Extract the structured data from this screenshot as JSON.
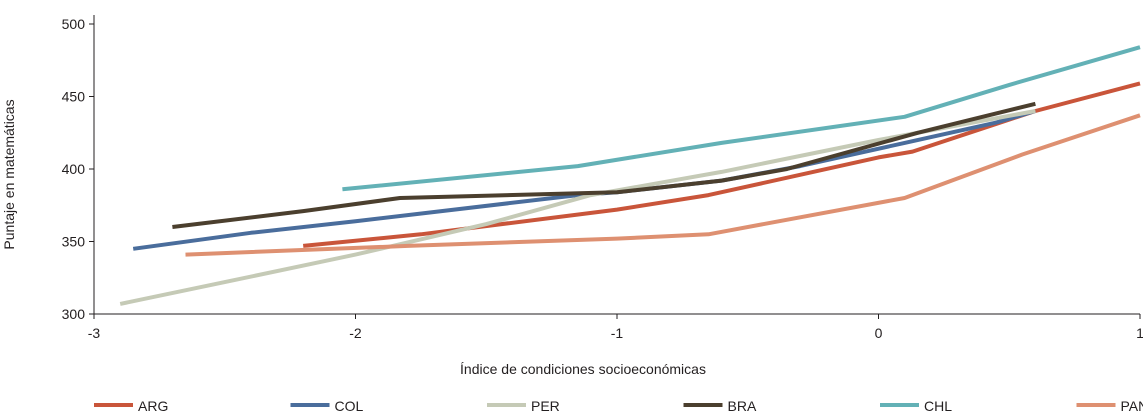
{
  "chart_data": {
    "type": "line",
    "title": "",
    "xlabel": "Índice de condiciones socioeconómicas",
    "ylabel": "Puntaje en matemáticas",
    "xlim": [
      -3,
      1
    ],
    "ylim": [
      300,
      500
    ],
    "xticks": [
      "-3",
      "-2",
      "-1",
      "0",
      "1"
    ],
    "yticks": [
      "300",
      "350",
      "400",
      "450",
      "500"
    ],
    "grid": false,
    "legend": "bottom",
    "series": [
      {
        "name": "ARG",
        "color": "#c9553a",
        "points": [
          [
            -2.2,
            347
          ],
          [
            -1.75,
            355
          ],
          [
            -1.0,
            372
          ],
          [
            -0.65,
            382
          ],
          [
            -0.3,
            396
          ],
          [
            0.0,
            408
          ],
          [
            0.13,
            412
          ],
          [
            0.6,
            440
          ],
          [
            1.0,
            459
          ]
        ]
      },
      {
        "name": "COL",
        "color": "#4a6d9c",
        "points": [
          [
            -2.85,
            345
          ],
          [
            -2.4,
            356
          ],
          [
            -2.0,
            364
          ],
          [
            -1.15,
            382
          ],
          [
            -1.0,
            384
          ],
          [
            -0.6,
            392
          ],
          [
            -0.3,
            402
          ],
          [
            0.1,
            418
          ],
          [
            0.45,
            432
          ],
          [
            0.6,
            440
          ]
        ]
      },
      {
        "name": "PER",
        "color": "#c5cab6",
        "points": [
          [
            -2.9,
            307
          ],
          [
            -2.5,
            322
          ],
          [
            -2.0,
            341
          ],
          [
            -1.5,
            362
          ],
          [
            -1.1,
            382
          ],
          [
            -0.6,
            398
          ],
          [
            0.0,
            420
          ],
          [
            0.6,
            440
          ]
        ]
      },
      {
        "name": "BRA",
        "color": "#4b3f2e",
        "points": [
          [
            -2.7,
            360
          ],
          [
            -2.2,
            371
          ],
          [
            -1.83,
            380
          ],
          [
            -1.0,
            384
          ],
          [
            -0.6,
            392
          ],
          [
            -0.35,
            400
          ],
          [
            0.15,
            425
          ],
          [
            0.6,
            445
          ]
        ]
      },
      {
        "name": "CHL",
        "color": "#63b1b6",
        "points": [
          [
            -2.05,
            386
          ],
          [
            -1.15,
            402
          ],
          [
            -0.6,
            418
          ],
          [
            0.1,
            436
          ],
          [
            0.5,
            458
          ],
          [
            1.0,
            484
          ]
        ]
      },
      {
        "name": "PAN",
        "color": "#de9071",
        "points": [
          [
            -2.65,
            341
          ],
          [
            -1.8,
            347
          ],
          [
            -1.0,
            352
          ],
          [
            -0.65,
            355
          ],
          [
            0.1,
            380
          ],
          [
            0.55,
            410
          ],
          [
            1.0,
            437
          ]
        ]
      }
    ]
  }
}
